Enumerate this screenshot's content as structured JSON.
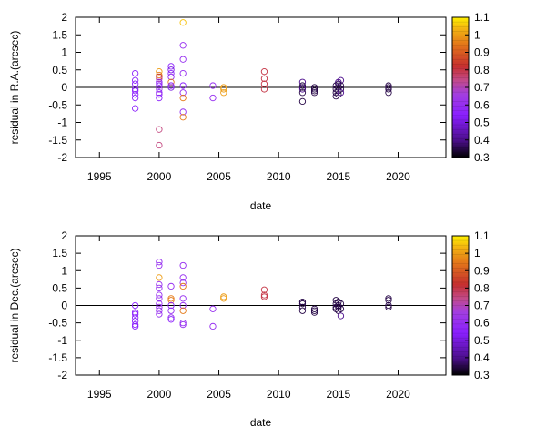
{
  "chart_data": [
    {
      "type": "scatter",
      "ylabel": "residual in R.A.(arcsec)",
      "xlabel": "date",
      "xlim": [
        1993,
        2024
      ],
      "ylim": [
        -2,
        2
      ],
      "x_ticks": [
        "1995",
        "2000",
        "2005",
        "2010",
        "2015",
        "2020"
      ],
      "y_ticks": [
        "-2",
        "-1.5",
        "-1",
        "-0.5",
        "0",
        "0.5",
        "1",
        "1.5",
        "2"
      ],
      "colorbar_ticks": [
        "0.3",
        "0.4",
        "0.5",
        "0.6",
        "0.7",
        "0.8",
        "0.9",
        "1",
        "1.1"
      ],
      "colorbar_range": [
        0.3,
        1.1
      ],
      "zero_line": true,
      "points": [
        [
          1998.0,
          0.4,
          0.55
        ],
        [
          1998.0,
          0.2,
          0.55
        ],
        [
          1998.0,
          0.1,
          0.55
        ],
        [
          1998.0,
          -0.05,
          0.55
        ],
        [
          1998.0,
          -0.1,
          0.55
        ],
        [
          1998.0,
          -0.2,
          0.55
        ],
        [
          1998.0,
          -0.3,
          0.55
        ],
        [
          1998.0,
          -0.6,
          0.55
        ],
        [
          2000.0,
          0.45,
          1.0
        ],
        [
          2000.0,
          0.35,
          0.95
        ],
        [
          2000.0,
          0.3,
          0.85
        ],
        [
          2000.0,
          0.25,
          0.75
        ],
        [
          2000.0,
          0.15,
          0.55
        ],
        [
          2000.0,
          0.1,
          0.6
        ],
        [
          2000.0,
          0.05,
          0.55
        ],
        [
          2000.0,
          -0.05,
          0.65
        ],
        [
          2000.0,
          -0.15,
          0.55
        ],
        [
          2000.0,
          -0.2,
          0.6
        ],
        [
          2000.0,
          -0.3,
          0.55
        ],
        [
          2000.0,
          -1.2,
          0.75
        ],
        [
          2000.0,
          -1.65,
          0.75
        ],
        [
          2001.0,
          0.6,
          0.55
        ],
        [
          2001.0,
          0.5,
          0.5
        ],
        [
          2001.0,
          0.4,
          0.55
        ],
        [
          2001.0,
          0.3,
          0.6
        ],
        [
          2001.0,
          0.15,
          0.95
        ],
        [
          2001.0,
          0.05,
          0.55
        ],
        [
          2001.0,
          0.0,
          0.5
        ],
        [
          2002.0,
          1.85,
          1.05
        ],
        [
          2002.0,
          1.2,
          0.6
        ],
        [
          2002.0,
          0.8,
          0.6
        ],
        [
          2002.0,
          0.4,
          0.6
        ],
        [
          2002.0,
          0.05,
          0.55
        ],
        [
          2002.0,
          -0.15,
          0.6
        ],
        [
          2002.0,
          -0.3,
          0.95
        ],
        [
          2002.0,
          -0.7,
          0.6
        ],
        [
          2002.0,
          -0.85,
          0.95
        ],
        [
          2004.5,
          0.05,
          0.6
        ],
        [
          2004.5,
          -0.3,
          0.6
        ],
        [
          2005.4,
          0.0,
          1.0
        ],
        [
          2005.4,
          -0.05,
          1.0
        ],
        [
          2005.4,
          -0.15,
          1.0
        ],
        [
          2008.8,
          0.45,
          0.8
        ],
        [
          2008.8,
          0.25,
          0.8
        ],
        [
          2008.8,
          0.1,
          0.8
        ],
        [
          2008.8,
          -0.05,
          0.8
        ],
        [
          2012.0,
          0.15,
          0.4
        ],
        [
          2012.0,
          0.05,
          0.35
        ],
        [
          2012.0,
          0.0,
          0.35
        ],
        [
          2012.0,
          -0.05,
          0.4
        ],
        [
          2012.0,
          -0.15,
          0.35
        ],
        [
          2012.0,
          -0.4,
          0.35
        ],
        [
          2013.0,
          0.0,
          0.35
        ],
        [
          2013.0,
          -0.05,
          0.35
        ],
        [
          2013.0,
          -0.1,
          0.35
        ],
        [
          2013.0,
          -0.15,
          0.35
        ],
        [
          2014.8,
          0.05,
          0.35
        ],
        [
          2014.8,
          -0.05,
          0.35
        ],
        [
          2014.8,
          -0.15,
          0.35
        ],
        [
          2014.8,
          -0.25,
          0.35
        ],
        [
          2015.0,
          0.15,
          0.4
        ],
        [
          2015.0,
          0.1,
          0.35
        ],
        [
          2015.0,
          0.0,
          0.35
        ],
        [
          2015.0,
          -0.1,
          0.35
        ],
        [
          2015.0,
          -0.2,
          0.35
        ],
        [
          2015.2,
          0.2,
          0.4
        ],
        [
          2015.2,
          0.05,
          0.35
        ],
        [
          2015.2,
          -0.05,
          0.35
        ],
        [
          2015.2,
          -0.15,
          0.4
        ],
        [
          2019.2,
          0.05,
          0.35
        ],
        [
          2019.2,
          0.0,
          0.35
        ],
        [
          2019.2,
          -0.05,
          0.35
        ],
        [
          2019.2,
          -0.15,
          0.35
        ]
      ]
    },
    {
      "type": "scatter",
      "ylabel": "residual in Dec.(arcsec)",
      "xlabel": "date",
      "xlim": [
        1993,
        2024
      ],
      "ylim": [
        -2,
        2
      ],
      "x_ticks": [
        "1995",
        "2000",
        "2005",
        "2010",
        "2015",
        "2020"
      ],
      "y_ticks": [
        "-2",
        "-1.5",
        "-1",
        "-0.5",
        "0",
        "0.5",
        "1",
        "1.5",
        "2"
      ],
      "colorbar_ticks": [
        "0.3",
        "0.4",
        "0.5",
        "0.6",
        "0.7",
        "0.8",
        "0.9",
        "1",
        "1.1"
      ],
      "colorbar_range": [
        0.3,
        1.1
      ],
      "zero_line": true,
      "points": [
        [
          1998.0,
          0.0,
          0.55
        ],
        [
          1998.0,
          -0.2,
          0.55
        ],
        [
          1998.0,
          -0.25,
          0.55
        ],
        [
          1998.0,
          -0.35,
          0.55
        ],
        [
          1998.0,
          -0.45,
          0.55
        ],
        [
          1998.0,
          -0.55,
          0.55
        ],
        [
          1998.0,
          -0.6,
          0.55
        ],
        [
          2000.0,
          1.25,
          0.6
        ],
        [
          2000.0,
          1.15,
          0.6
        ],
        [
          2000.0,
          0.8,
          1.0
        ],
        [
          2000.0,
          0.6,
          0.6
        ],
        [
          2000.0,
          0.5,
          0.6
        ],
        [
          2000.0,
          0.3,
          0.6
        ],
        [
          2000.0,
          0.2,
          0.6
        ],
        [
          2000.0,
          0.05,
          0.6
        ],
        [
          2000.0,
          -0.05,
          0.6
        ],
        [
          2000.0,
          -0.15,
          0.6
        ],
        [
          2000.0,
          -0.25,
          0.6
        ],
        [
          2001.0,
          0.55,
          0.6
        ],
        [
          2001.0,
          0.2,
          0.95
        ],
        [
          2001.0,
          0.15,
          0.95
        ],
        [
          2001.0,
          0.0,
          0.55
        ],
        [
          2001.0,
          -0.15,
          0.6
        ],
        [
          2001.0,
          -0.35,
          0.6
        ],
        [
          2001.0,
          -0.4,
          0.55
        ],
        [
          2002.0,
          1.15,
          0.6
        ],
        [
          2002.0,
          0.8,
          0.6
        ],
        [
          2002.0,
          0.65,
          0.6
        ],
        [
          2002.0,
          0.55,
          0.95
        ],
        [
          2002.0,
          0.2,
          0.6
        ],
        [
          2002.0,
          0.0,
          0.6
        ],
        [
          2002.0,
          -0.15,
          0.95
        ],
        [
          2002.0,
          -0.5,
          0.6
        ],
        [
          2002.0,
          -0.55,
          0.6
        ],
        [
          2004.5,
          -0.1,
          0.6
        ],
        [
          2004.5,
          -0.6,
          0.6
        ],
        [
          2005.4,
          0.25,
          1.0
        ],
        [
          2005.4,
          0.2,
          1.0
        ],
        [
          2008.8,
          0.45,
          0.8
        ],
        [
          2008.8,
          0.3,
          0.8
        ],
        [
          2008.8,
          0.25,
          0.8
        ],
        [
          2012.0,
          0.1,
          0.35
        ],
        [
          2012.0,
          0.05,
          0.35
        ],
        [
          2012.0,
          -0.05,
          0.35
        ],
        [
          2012.0,
          -0.15,
          0.35
        ],
        [
          2013.0,
          -0.1,
          0.35
        ],
        [
          2013.0,
          -0.15,
          0.35
        ],
        [
          2013.0,
          -0.2,
          0.35
        ],
        [
          2014.8,
          0.15,
          0.35
        ],
        [
          2014.8,
          0.05,
          0.35
        ],
        [
          2014.8,
          -0.05,
          0.35
        ],
        [
          2014.8,
          -0.1,
          0.35
        ],
        [
          2015.0,
          0.1,
          0.35
        ],
        [
          2015.0,
          0.0,
          0.35
        ],
        [
          2015.0,
          -0.05,
          0.35
        ],
        [
          2015.0,
          -0.15,
          0.35
        ],
        [
          2015.2,
          0.05,
          0.35
        ],
        [
          2015.2,
          -0.1,
          0.35
        ],
        [
          2015.2,
          -0.3,
          0.4
        ],
        [
          2019.2,
          0.2,
          0.35
        ],
        [
          2019.2,
          0.15,
          0.35
        ],
        [
          2019.2,
          0.0,
          0.35
        ],
        [
          2019.2,
          -0.05,
          0.35
        ]
      ]
    }
  ]
}
